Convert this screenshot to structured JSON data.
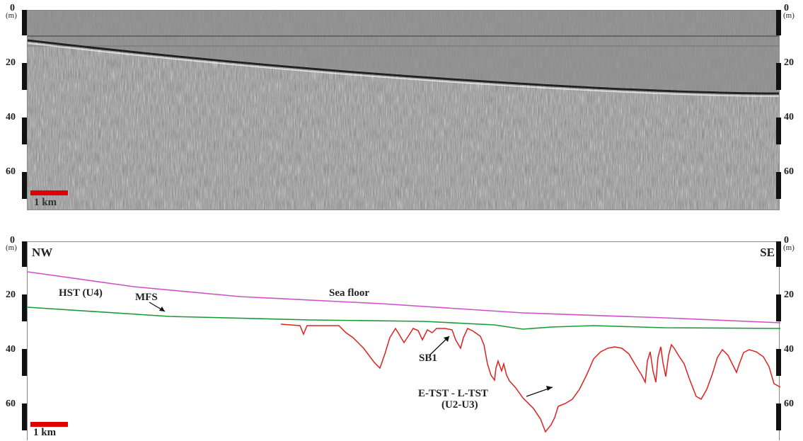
{
  "depth_axis": {
    "unit": "(m)",
    "ticks": [
      "0",
      "20",
      "40",
      "60"
    ]
  },
  "top_panel": {
    "scale_label": "1 km"
  },
  "bottom_panel": {
    "scale_label": "1 km",
    "direction_left": "NW",
    "direction_right": "SE",
    "annotations": {
      "hst": "HST (U4)",
      "mfs": "MFS",
      "sea_floor": "Sea floor",
      "sb1": "SB1",
      "tst": "E-TST - L-TST",
      "tst_units": "(U2-U3)"
    }
  },
  "colors": {
    "sea_floor": "#d050c8",
    "mfs": "#1a9a3a",
    "sb1": "#e02020",
    "scale_bar": "#e00000"
  }
}
